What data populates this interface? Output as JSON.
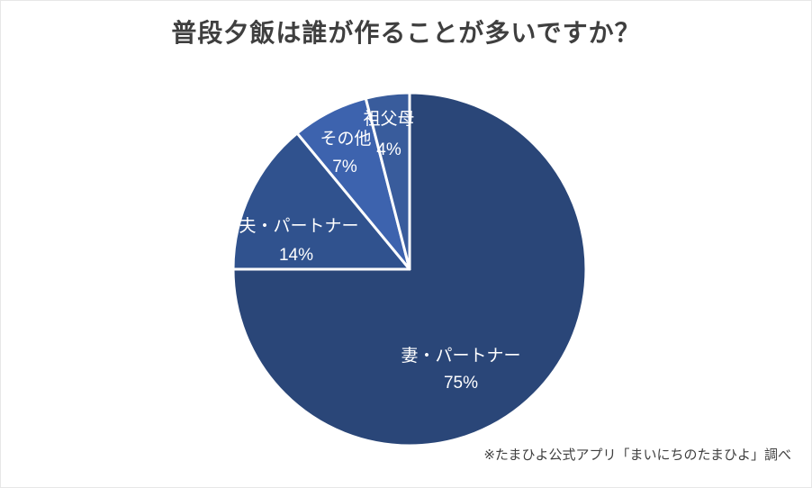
{
  "chart_data": {
    "type": "pie",
    "title": "普段夕飯は誰が作ることが多いですか？",
    "categories": [
      "妻・パートナー",
      "夫・パートナー",
      "その他",
      "祖父母"
    ],
    "values": [
      75,
      14,
      7,
      4
    ],
    "unit": "%",
    "value_labels": [
      "75%",
      "14%",
      "7%",
      "4%"
    ],
    "slice_colors": [
      "#2A4678",
      "#30528E",
      "#3D63AE",
      "#395C9C"
    ],
    "divider_color": "#FFFFFF",
    "label_color": "#FFFFFF",
    "start_angle_deg": 0,
    "direction": "clockwise",
    "legend": "none",
    "labels_position": "inside",
    "source_note": "※たまひよ公式アプリ「まいにちのたまひよ」調べ"
  }
}
